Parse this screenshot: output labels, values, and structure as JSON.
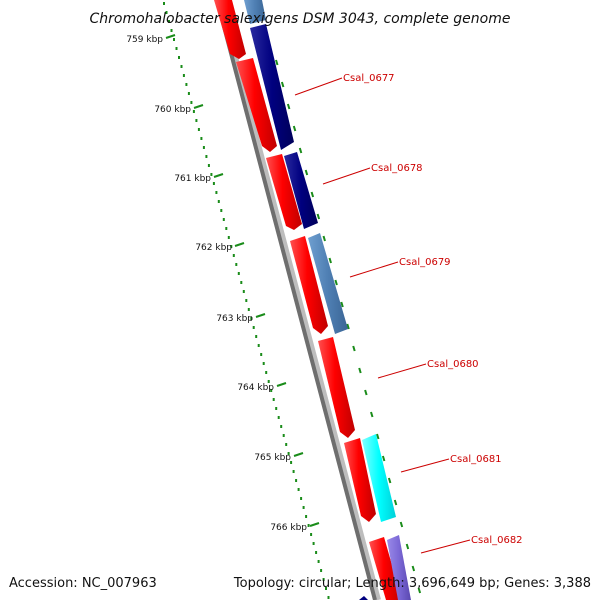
{
  "title": "Chromohalobacter salexigens DSM 3043, complete genome",
  "footer": {
    "accession": "Accession: NC_007963",
    "summary": "Topology: circular; Length: 3,696,649 bp; Genes: 3,388"
  },
  "scale": {
    "ticks": [
      "759 kbp",
      "760 kbp",
      "761 kbp",
      "762 kbp",
      "763 kbp",
      "764 kbp",
      "765 kbp",
      "766 kbp"
    ]
  },
  "colors": {
    "forward_cds": "#ff0000",
    "reverse_cds_navy": "#00007f",
    "reverse_cds_steel": "#4f7fb3",
    "reverse_cds_cyan": "#00ffff",
    "reverse_cds_violet": "#7b68d6",
    "backbone": "#7f7f7f",
    "gc_dots": "#1a8c1a",
    "gene_label": "#cc0000"
  },
  "genes": [
    {
      "label": "Csal_0677"
    },
    {
      "label": "Csal_0678"
    },
    {
      "label": "Csal_0679"
    },
    {
      "label": "Csal_0680"
    },
    {
      "label": "Csal_0681"
    },
    {
      "label": "Csal_0682"
    }
  ]
}
